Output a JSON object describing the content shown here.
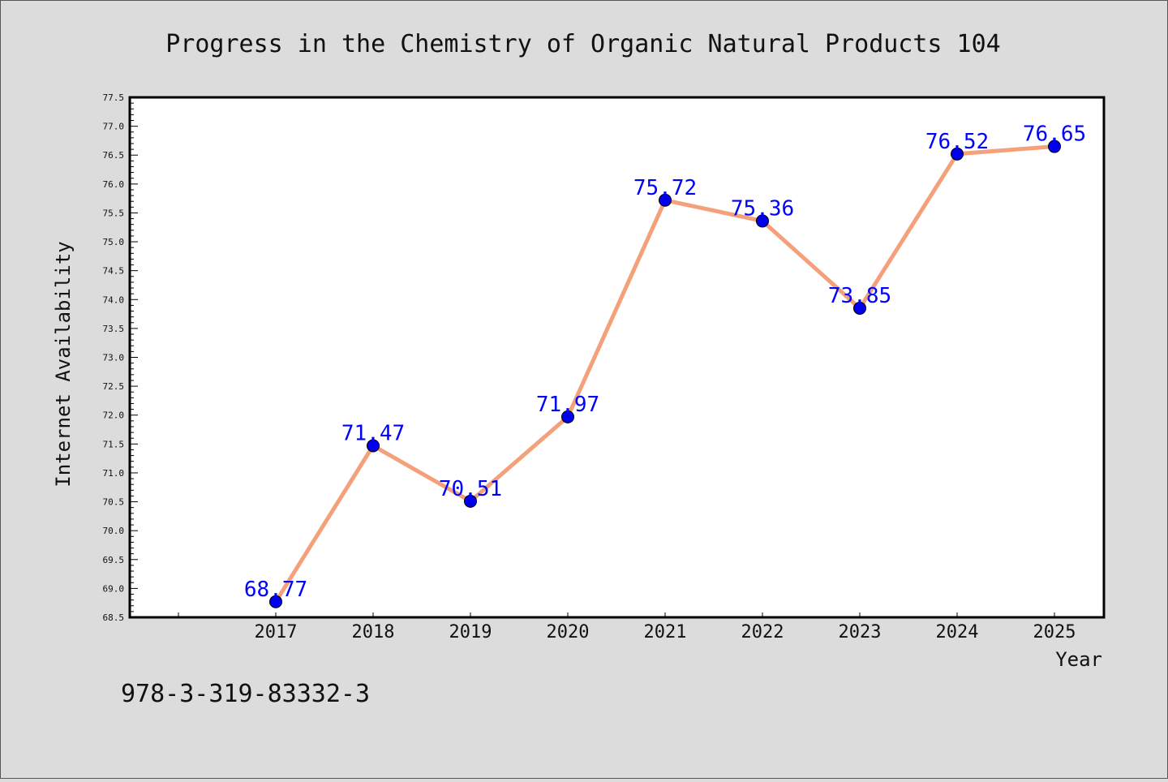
{
  "chart_data": {
    "type": "line",
    "title": "Progress in the Chemistry of Organic Natural Products 104",
    "xlabel": "Year",
    "ylabel": "Internet Availability",
    "categories": [
      "2017",
      "2018",
      "2019",
      "2020",
      "2021",
      "2022",
      "2023",
      "2024",
      "2025"
    ],
    "series": [
      {
        "values": [
          68.77,
          71.47,
          70.51,
          71.97,
          75.72,
          75.36,
          73.85,
          76.52,
          76.65
        ],
        "data_labels": [
          "68.77",
          "71.47",
          "70.51",
          "71.97",
          "75.72",
          "75.36",
          "73.85",
          "76.52",
          "76.65"
        ],
        "line_color": "#f4a07a",
        "marker_color": "#0000ee"
      }
    ],
    "ylim": [
      68.5,
      77.5
    ],
    "yticks": [
      "68.5",
      "69.0",
      "69.5",
      "70.0",
      "70.5",
      "71.0",
      "71.5",
      "72.0",
      "72.5",
      "73.0",
      "73.5",
      "74.0",
      "74.5",
      "75.0",
      "75.5",
      "76.0",
      "76.5",
      "77.0",
      "77.5"
    ],
    "grid": false,
    "legend": "none",
    "label_color": "#0000ff",
    "background_color": "#dcdcdc",
    "plot_background_color": "#ffffff"
  },
  "footer": {
    "isbn": "978-3-319-83332-3"
  }
}
